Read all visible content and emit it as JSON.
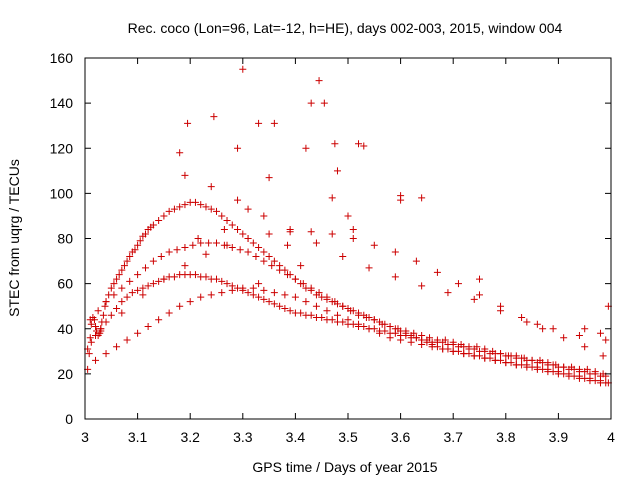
{
  "chart_data": {
    "type": "scatter",
    "title": "Rec. coco (Lon=96, Lat=-12, h=HE), days 002-003, 2015, window 004",
    "xlabel": "GPS time / Days of year 2015",
    "ylabel": "STEC from uqrg / TECUs",
    "xlim": [
      3,
      4
    ],
    "ylim": [
      0,
      160
    ],
    "xticks": [
      3,
      3.1,
      3.2,
      3.3,
      3.4,
      3.5,
      3.6,
      3.7,
      3.8,
      3.9,
      4
    ],
    "xtick_labels": [
      "3",
      "3.1",
      "3.2",
      "3.3",
      "3.4",
      "3.5",
      "3.6",
      "3.7",
      "3.8",
      "3.9",
      "4"
    ],
    "yticks": [
      0,
      20,
      40,
      60,
      80,
      100,
      120,
      140,
      160
    ],
    "ytick_labels": [
      "0",
      "20",
      "40",
      "60",
      "80",
      "100",
      "120",
      "140",
      "160"
    ],
    "marker": "plus",
    "color": "#cc0000",
    "grid": false,
    "series": [
      {
        "name": "STEC",
        "x": [
          3.005,
          3.008,
          3.01,
          3.012,
          3.015,
          3.018,
          3.02,
          3.022,
          3.025,
          3.028,
          3.03,
          3.032,
          3.035,
          3.038,
          3.04,
          3.045,
          3.05,
          3.055,
          3.06,
          3.065,
          3.07,
          3.075,
          3.08,
          3.085,
          3.09,
          3.095,
          3.1,
          3.105,
          3.11,
          3.115,
          3.12,
          3.125,
          3.13,
          3.14,
          3.15,
          3.16,
          3.17,
          3.18,
          3.19,
          3.2,
          3.21,
          3.22,
          3.23,
          3.24,
          3.25,
          3.26,
          3.27,
          3.28,
          3.29,
          3.3,
          3.31,
          3.32,
          3.33,
          3.34,
          3.35,
          3.36,
          3.37,
          3.38,
          3.39,
          3.4,
          3.41,
          3.42,
          3.43,
          3.44,
          3.45,
          3.46,
          3.47,
          3.48,
          3.49,
          3.5,
          3.51,
          3.52,
          3.53,
          3.54,
          3.55,
          3.56,
          3.57,
          3.58,
          3.59,
          3.6,
          3.61,
          3.62,
          3.63,
          3.64,
          3.65,
          3.66,
          3.67,
          3.68,
          3.69,
          3.7,
          3.71,
          3.72,
          3.73,
          3.74,
          3.75,
          3.76,
          3.77,
          3.78,
          3.79,
          3.8,
          3.81,
          3.82,
          3.83,
          3.84,
          3.85,
          3.86,
          3.87,
          3.88,
          3.89,
          3.9,
          3.91,
          3.92,
          3.93,
          3.94,
          3.95,
          3.96,
          3.97,
          3.98,
          3.99,
          3.995,
          3.005,
          3.012,
          3.02,
          3.03,
          3.04,
          3.05,
          3.06,
          3.07,
          3.08,
          3.09,
          3.1,
          3.11,
          3.12,
          3.13,
          3.14,
          3.15,
          3.16,
          3.17,
          3.18,
          3.19,
          3.2,
          3.21,
          3.22,
          3.23,
          3.24,
          3.25,
          3.26,
          3.27,
          3.28,
          3.29,
          3.3,
          3.31,
          3.32,
          3.33,
          3.34,
          3.35,
          3.36,
          3.37,
          3.38,
          3.39,
          3.4,
          3.41,
          3.42,
          3.43,
          3.44,
          3.45,
          3.46,
          3.47,
          3.48,
          3.49,
          3.5,
          3.51,
          3.52,
          3.53,
          3.54,
          3.55,
          3.56,
          3.57,
          3.58,
          3.59,
          3.6,
          3.61,
          3.62,
          3.63,
          3.64,
          3.65,
          3.66,
          3.67,
          3.68,
          3.69,
          3.7,
          3.71,
          3.72,
          3.73,
          3.74,
          3.75,
          3.76,
          3.77,
          3.78,
          3.79,
          3.8,
          3.81,
          3.82,
          3.83,
          3.84,
          3.85,
          3.86,
          3.87,
          3.88,
          3.89,
          3.9,
          3.91,
          3.92,
          3.93,
          3.94,
          3.95,
          3.96,
          3.97,
          3.98,
          3.99,
          3.01,
          3.025,
          3.04,
          3.055,
          3.07,
          3.085,
          3.1,
          3.115,
          3.13,
          3.145,
          3.16,
          3.175,
          3.19,
          3.205,
          3.22,
          3.235,
          3.25,
          3.265,
          3.28,
          3.295,
          3.31,
          3.325,
          3.34,
          3.355,
          3.37,
          3.385,
          3.4,
          3.415,
          3.43,
          3.445,
          3.46,
          3.475,
          3.49,
          3.505,
          3.52,
          3.535,
          3.55,
          3.565,
          3.58,
          3.595,
          3.61,
          3.625,
          3.64,
          3.655,
          3.67,
          3.685,
          3.7,
          3.715,
          3.73,
          3.745,
          3.76,
          3.775,
          3.79,
          3.805,
          3.82,
          3.835,
          3.85,
          3.865,
          3.88,
          3.895,
          3.91,
          3.925,
          3.94,
          3.955,
          3.97,
          3.985,
          3.02,
          3.04,
          3.06,
          3.08,
          3.1,
          3.12,
          3.14,
          3.16,
          3.18,
          3.2,
          3.22,
          3.24,
          3.26,
          3.28,
          3.3,
          3.32,
          3.34,
          3.36,
          3.38,
          3.4,
          3.42,
          3.44,
          3.46,
          3.48,
          3.5,
          3.52,
          3.54,
          3.56,
          3.58,
          3.6,
          3.62,
          3.64,
          3.66,
          3.68,
          3.7,
          3.72,
          3.74,
          3.76,
          3.78,
          3.8,
          3.82,
          3.84,
          3.86,
          3.88,
          3.9,
          3.92,
          3.94,
          3.96,
          3.98,
          3.19,
          3.24,
          3.29,
          3.34,
          3.39,
          3.44,
          3.49,
          3.54,
          3.59,
          3.64,
          3.69,
          3.74,
          3.79,
          3.84,
          3.89,
          3.94,
          3.99,
          3.03,
          3.07,
          3.11,
          3.15,
          3.19,
          3.23,
          3.27,
          3.31,
          3.35,
          3.39,
          3.43,
          3.47,
          3.51,
          3.55,
          3.59,
          3.63,
          3.67,
          3.71,
          3.75,
          3.79,
          3.83,
          3.87,
          3.91,
          3.95,
          3.985,
          3.18,
          3.195,
          3.245,
          3.29,
          3.33,
          3.3,
          3.36,
          3.43,
          3.445,
          3.455,
          3.475,
          3.52,
          3.48,
          3.53,
          3.42,
          3.6,
          3.64,
          3.6,
          3.75,
          3.86,
          3.95,
          3.98,
          3.995,
          3.215,
          3.265,
          3.31,
          3.385,
          3.41,
          3.33,
          3.35,
          3.47,
          3.5,
          3.51
        ],
        "y": [
          22,
          29,
          36,
          42,
          45,
          44,
          41,
          39,
          37,
          38,
          40,
          43,
          46,
          50,
          52,
          55,
          58,
          60,
          62,
          64,
          66,
          68,
          70,
          72,
          74,
          75,
          77,
          79,
          81,
          82,
          84,
          85,
          86,
          88,
          90,
          92,
          93,
          94,
          95,
          96,
          96,
          95,
          94,
          93,
          92,
          90,
          88,
          86,
          84,
          82,
          80,
          78,
          76,
          74,
          72,
          70,
          68,
          66,
          64,
          62,
          60,
          58,
          57,
          55,
          54,
          53,
          52,
          51,
          50,
          49,
          48,
          47,
          46,
          45,
          44,
          43,
          42,
          41,
          40,
          39,
          38,
          37,
          36,
          35,
          34,
          33,
          32,
          31,
          31,
          30,
          30,
          29,
          29,
          28,
          28,
          27,
          27,
          26,
          26,
          25,
          25,
          24,
          24,
          23,
          23,
          22,
          22,
          21,
          21,
          20,
          20,
          19,
          19,
          18,
          18,
          17,
          17,
          16,
          16,
          16,
          31,
          34,
          37,
          40,
          43,
          46,
          49,
          52,
          54,
          56,
          57,
          58,
          59,
          60,
          61,
          62,
          63,
          63,
          64,
          64,
          64,
          64,
          63,
          63,
          62,
          62,
          61,
          60,
          59,
          58,
          57,
          56,
          55,
          54,
          53,
          52,
          51,
          50,
          49,
          48,
          47,
          47,
          46,
          46,
          45,
          45,
          44,
          44,
          43,
          43,
          42,
          42,
          41,
          41,
          40,
          40,
          39,
          39,
          38,
          38,
          37,
          37,
          36,
          36,
          35,
          35,
          34,
          34,
          34,
          33,
          33,
          32,
          32,
          31,
          31,
          30,
          30,
          29,
          29,
          29,
          28,
          28,
          27,
          27,
          26,
          26,
          25,
          25,
          24,
          24,
          23,
          23,
          22,
          22,
          21,
          21,
          20,
          20,
          19,
          19,
          44,
          48,
          52,
          55,
          58,
          61,
          64,
          67,
          70,
          72,
          74,
          75,
          76,
          77,
          78,
          78,
          78,
          77,
          76,
          75,
          74,
          72,
          70,
          68,
          66,
          64,
          62,
          60,
          58,
          56,
          54,
          52,
          50,
          48,
          46,
          45,
          44,
          42,
          41,
          40,
          39,
          38,
          37,
          36,
          35,
          35,
          34,
          33,
          32,
          32,
          31,
          30,
          29,
          28,
          28,
          27,
          26,
          26,
          25,
          24,
          23,
          23,
          22,
          22,
          21,
          20,
          26,
          29,
          32,
          35,
          38,
          41,
          44,
          47,
          50,
          52,
          54,
          55,
          56,
          57,
          58,
          58,
          57,
          56,
          55,
          54,
          52,
          50,
          48,
          46,
          44,
          42,
          40,
          38,
          36,
          35,
          34,
          33,
          32,
          31,
          30,
          29,
          28,
          27,
          26,
          25,
          24,
          24,
          23,
          22,
          21,
          20,
          19,
          18,
          17,
          108,
          103,
          97,
          90,
          84,
          78,
          72,
          67,
          63,
          59,
          56,
          53,
          48,
          43,
          40,
          37,
          35,
          39,
          47,
          55,
          62,
          68,
          73,
          77,
          80,
          82,
          83,
          83,
          82,
          80,
          77,
          74,
          70,
          65,
          60,
          55,
          50,
          45,
          40,
          36,
          32,
          28,
          118,
          131,
          134,
          120,
          131,
          155,
          131,
          140,
          150,
          140,
          122,
          122,
          110,
          121,
          120,
          99,
          98,
          97,
          62,
          42,
          40,
          38,
          50,
          80,
          84,
          93,
          77,
          68,
          60,
          107,
          98,
          90,
          84
        ]
      }
    ]
  }
}
